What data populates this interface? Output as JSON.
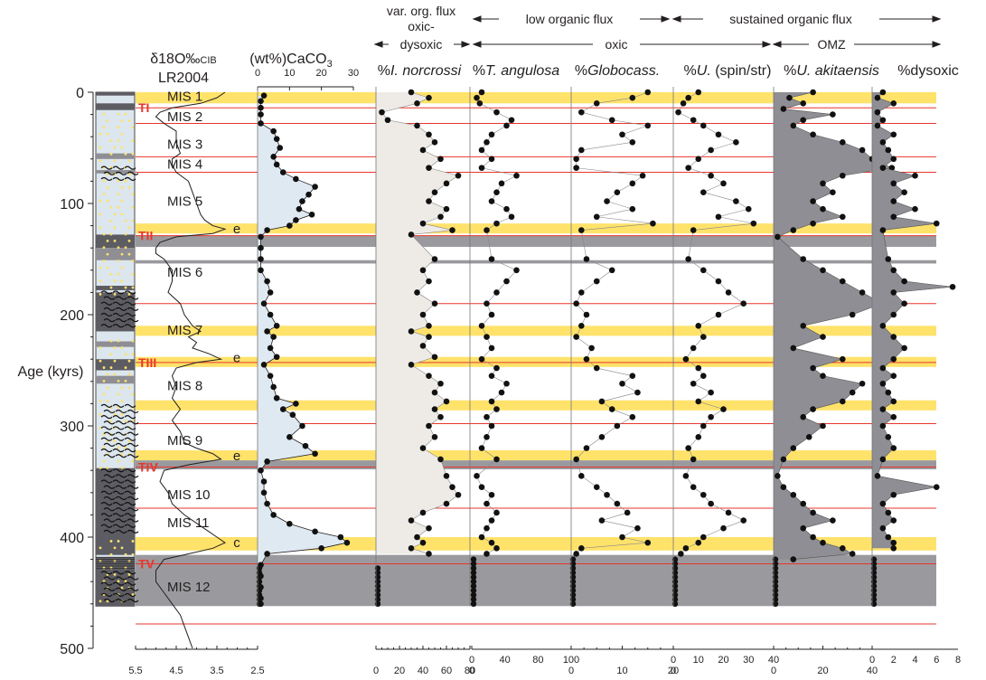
{
  "chart_data": {
    "type": "line",
    "y_axis": {
      "label": "Age (kyrs)",
      "range": [
        0,
        500
      ],
      "ticks": [
        "0",
        "100",
        "200",
        "300",
        "400",
        "500"
      ],
      "inverted": true
    },
    "header": {
      "var_flux": "var. org. flux",
      "oxic_dysoxic_1": "oxic-",
      "oxic_dysoxic_2": "dysoxic",
      "low_flux": "low organic flux",
      "sustained_flux": "sustained organic flux",
      "oxic": "oxic",
      "omz": "OMZ"
    },
    "panel_titles": {
      "d18o_1": "δ18O‰",
      "d18o_sub": "CIB",
      "d18o_2": "LR2004",
      "caco3": "(wt%)CaCO",
      "caco3_sub": "3",
      "inorc_pct": "%",
      "inorc_name": "I. norcrossi",
      "tang_pct": "%",
      "tang_name": "T. angulosa",
      "glob_pct": "%",
      "glob_name": "Globocass.",
      "uspin_pct": "%",
      "uspin_name": "U.",
      "uspin_suffix": " (spin/str)",
      "uakit_pct": "%",
      "uakit_name": "U. akitaensis",
      "dysoxic": "%dysoxic"
    },
    "mis_labels": [
      {
        "text": "MIS 1",
        "y": 3
      },
      {
        "text": "MIS 2",
        "y": 21
      },
      {
        "text": "MIS 3",
        "y": 46
      },
      {
        "text": "MIS 4",
        "y": 64
      },
      {
        "text": "MIS 5",
        "y": 97
      },
      {
        "text": "e",
        "y": 122
      },
      {
        "text": "MIS 6",
        "y": 161
      },
      {
        "text": "MIS 7",
        "y": 213
      },
      {
        "text": "e",
        "y": 238
      },
      {
        "text": "MIS 8",
        "y": 263
      },
      {
        "text": "MIS 9",
        "y": 312
      },
      {
        "text": "e",
        "y": 326
      },
      {
        "text": "MIS 10",
        "y": 361
      },
      {
        "text": "MIS 11",
        "y": 386
      },
      {
        "text": "c",
        "y": 404
      },
      {
        "text": "MIS 12",
        "y": 444
      }
    ],
    "terminations": [
      {
        "label": "TI",
        "y": 14
      },
      {
        "label": "TII",
        "y": 129
      },
      {
        "label": "TIII",
        "y": 243
      },
      {
        "label": "TIV",
        "y": 337
      },
      {
        "label": "TV",
        "y": 424
      }
    ],
    "red_lines": [
      14,
      28,
      58,
      72,
      129,
      190,
      243,
      298,
      337,
      374,
      424,
      478
    ],
    "yellow_bands": [
      [
        0,
        10
      ],
      [
        118,
        127
      ],
      [
        210,
        219
      ],
      [
        238,
        247
      ],
      [
        277,
        286
      ],
      [
        322,
        331
      ],
      [
        400,
        412
      ]
    ],
    "gray_bands": [
      [
        129,
        139
      ],
      [
        151,
        154
      ],
      [
        331,
        339
      ],
      [
        416,
        462
      ]
    ],
    "d18o_axis": {
      "ticks": [
        "5.5",
        "4.5",
        "3.5",
        "2.5"
      ],
      "min": 5.5,
      "max": 2.5
    },
    "caco3_axis": {
      "ticks": [
        "0",
        "10",
        "20",
        "30"
      ],
      "min": 0,
      "max": 30
    },
    "inorc_axis": {
      "ticks": [
        "0",
        "20",
        "40",
        "60",
        "80"
      ],
      "min": 0,
      "max": 80
    },
    "tang_axis": {
      "top_ticks": [
        "0",
        "40",
        "80",
        "100"
      ],
      "bottom_ticks": [
        "0"
      ],
      "min": 0,
      "max": 100
    },
    "glob_axis": {
      "top_ticks": [
        "0",
        "10",
        "20",
        "30",
        "40"
      ],
      "bottom_ticks": [
        "0",
        "10",
        "20"
      ],
      "min": 0,
      "max": 20
    },
    "uspin_axis": {
      "top_ticks": [
        "0",
        "10",
        "20",
        "30",
        "40"
      ],
      "bottom_ticks": [
        "0"
      ],
      "min": 0,
      "max": 40
    },
    "uakit_axis": {
      "top_ticks": [
        "0",
        "2",
        "4",
        "6",
        "8"
      ],
      "bottom_ticks": [
        "0",
        "20",
        "40"
      ],
      "min": 0,
      "max": 50
    },
    "dys_axis": {
      "min": 0,
      "max": 8
    },
    "series": [
      {
        "key": "d18o",
        "age": [
          0,
          5,
          10,
          14,
          18,
          22,
          28,
          35,
          45,
          55,
          60,
          65,
          72,
          80,
          90,
          100,
          110,
          115,
          120,
          123,
          127,
          130,
          135,
          140,
          145,
          150,
          160,
          170,
          180,
          190,
          200,
          210,
          215,
          220,
          225,
          230,
          235,
          240,
          243,
          248,
          255,
          265,
          275,
          285,
          295,
          305,
          315,
          320,
          325,
          330,
          335,
          340,
          350,
          360,
          370,
          380,
          390,
          395,
          400,
          405,
          410,
          415,
          420,
          430,
          440,
          450,
          460,
          470,
          480,
          490,
          500
        ],
        "values": [
          3.3,
          3.5,
          3.9,
          4.6,
          4.9,
          5.0,
          4.8,
          4.5,
          4.5,
          4.4,
          4.6,
          4.6,
          4.5,
          4.2,
          4.1,
          4.0,
          3.9,
          3.8,
          3.6,
          3.3,
          3.6,
          4.5,
          4.9,
          5.0,
          5.0,
          4.8,
          4.6,
          4.6,
          4.7,
          4.4,
          4.3,
          4.1,
          3.9,
          4.2,
          4.0,
          4.1,
          3.7,
          3.4,
          4.0,
          4.5,
          4.6,
          4.5,
          4.6,
          4.4,
          4.6,
          4.4,
          4.3,
          4.0,
          3.6,
          3.4,
          4.2,
          4.8,
          4.9,
          4.7,
          4.6,
          4.3,
          3.9,
          3.7,
          3.5,
          3.3,
          3.6,
          4.2,
          4.8,
          5.0,
          5.0,
          4.8,
          4.6,
          4.4,
          4.3,
          4.2,
          4.1
        ]
      },
      {
        "key": "caco3",
        "age": [
          3,
          8,
          14,
          20,
          28,
          35,
          42,
          50,
          58,
          65,
          72,
          78,
          85,
          92,
          98,
          105,
          110,
          115,
          120,
          124,
          130,
          140,
          150,
          160,
          170,
          180,
          190,
          200,
          210,
          215,
          220,
          230,
          238,
          245,
          255,
          265,
          275,
          280,
          285,
          290,
          300,
          310,
          318,
          325,
          332,
          340,
          350,
          360,
          370,
          380,
          388,
          395,
          400,
          405,
          410,
          415,
          425,
          435,
          445,
          455,
          460
        ],
        "values": [
          2,
          1,
          1,
          1,
          1,
          5,
          6,
          7,
          5,
          6,
          8,
          12,
          18,
          16,
          14,
          13,
          17,
          12,
          10,
          3,
          1,
          1,
          1,
          1,
          3,
          4,
          2,
          4,
          6,
          3,
          5,
          4,
          6,
          2,
          4,
          5,
          6,
          12,
          8,
          11,
          14,
          10,
          15,
          18,
          3,
          1,
          2,
          2,
          3,
          5,
          10,
          18,
          26,
          28,
          20,
          3,
          1,
          1,
          1,
          1,
          1
        ]
      },
      {
        "key": "inorc",
        "age": [
          0,
          5,
          10,
          18,
          25,
          30,
          38,
          45,
          52,
          60,
          68,
          75,
          82,
          90,
          98,
          105,
          112,
          118,
          124,
          128,
          150,
          160,
          170,
          180,
          190,
          200,
          210,
          215,
          220,
          228,
          238,
          245,
          255,
          262,
          270,
          278,
          285,
          292,
          300,
          310,
          320,
          330,
          345,
          355,
          362,
          370,
          378,
          385,
          392,
          400,
          405,
          410,
          415
        ],
        "values": [
          30,
          45,
          35,
          5,
          10,
          35,
          45,
          50,
          40,
          55,
          45,
          70,
          60,
          50,
          45,
          60,
          55,
          40,
          65,
          30,
          50,
          40,
          45,
          35,
          50,
          40,
          45,
          30,
          45,
          40,
          50,
          30,
          45,
          55,
          50,
          60,
          50,
          55,
          45,
          50,
          40,
          55,
          60,
          65,
          70,
          60,
          40,
          30,
          45,
          35,
          40,
          30,
          45
        ]
      },
      {
        "key": "tang",
        "age": [
          0,
          5,
          10,
          18,
          25,
          30,
          38,
          45,
          52,
          60,
          68,
          75,
          82,
          90,
          98,
          105,
          112,
          118,
          124,
          150,
          160,
          170,
          180,
          190,
          200,
          210,
          220,
          230,
          240,
          248,
          255,
          262,
          270,
          278,
          285,
          292,
          300,
          310,
          320,
          330,
          345,
          355,
          362,
          370,
          378,
          385,
          392,
          400,
          405,
          410,
          415
        ],
        "values": [
          10,
          5,
          8,
          25,
          40,
          35,
          20,
          15,
          10,
          20,
          10,
          45,
          30,
          25,
          20,
          35,
          40,
          25,
          15,
          20,
          45,
          35,
          25,
          15,
          20,
          10,
          15,
          20,
          10,
          25,
          20,
          35,
          30,
          20,
          25,
          15,
          20,
          15,
          10,
          25,
          5,
          10,
          20,
          15,
          25,
          20,
          15,
          10,
          20,
          25,
          15
        ]
      },
      {
        "key": "glob",
        "age": [
          0,
          5,
          10,
          18,
          25,
          30,
          38,
          45,
          52,
          60,
          68,
          75,
          82,
          90,
          98,
          105,
          112,
          118,
          124,
          150,
          160,
          170,
          180,
          190,
          200,
          210,
          220,
          230,
          240,
          248,
          255,
          262,
          270,
          278,
          285,
          292,
          300,
          310,
          320,
          330,
          345,
          355,
          362,
          370,
          378,
          385,
          392,
          400,
          405,
          410,
          415
        ],
        "values": [
          15,
          12,
          5,
          2,
          8,
          15,
          10,
          12,
          2,
          1,
          1,
          14,
          12,
          9,
          7,
          12,
          5,
          16,
          2,
          3,
          8,
          5,
          2,
          1,
          3,
          2,
          1,
          4,
          3,
          5,
          12,
          10,
          13,
          6,
          8,
          12,
          9,
          6,
          3,
          1,
          2,
          5,
          7,
          9,
          11,
          6,
          13,
          10,
          15,
          2,
          1
        ]
      },
      {
        "key": "uspin",
        "age": [
          0,
          5,
          10,
          18,
          25,
          30,
          38,
          45,
          52,
          60,
          68,
          75,
          82,
          90,
          98,
          105,
          112,
          118,
          124,
          150,
          160,
          170,
          180,
          190,
          200,
          210,
          220,
          230,
          240,
          248,
          255,
          262,
          270,
          278,
          285,
          292,
          300,
          310,
          320,
          330,
          345,
          355,
          362,
          370,
          378,
          385,
          392,
          400,
          405,
          410,
          415
        ],
        "values": [
          10,
          6,
          4,
          2,
          8,
          12,
          18,
          25,
          15,
          10,
          6,
          15,
          20,
          12,
          25,
          30,
          18,
          32,
          8,
          6,
          12,
          18,
          22,
          28,
          18,
          10,
          12,
          8,
          5,
          10,
          12,
          8,
          15,
          10,
          20,
          15,
          12,
          10,
          6,
          8,
          5,
          8,
          12,
          15,
          22,
          28,
          20,
          12,
          10,
          5,
          3
        ]
      },
      {
        "key": "uakit",
        "age": [
          0,
          5,
          10,
          15,
          20,
          25,
          30,
          38,
          45,
          52,
          60,
          68,
          75,
          82,
          90,
          98,
          105,
          112,
          118,
          124,
          130,
          150,
          160,
          170,
          180,
          190,
          200,
          210,
          220,
          230,
          240,
          248,
          255,
          262,
          270,
          278,
          285,
          292,
          300,
          310,
          320,
          330,
          345,
          355,
          362,
          370,
          378,
          385,
          392,
          400,
          405,
          410,
          415,
          420
        ],
        "values": [
          20,
          8,
          15,
          5,
          30,
          15,
          10,
          20,
          35,
          45,
          50,
          60,
          35,
          25,
          30,
          20,
          25,
          35,
          20,
          10,
          2,
          15,
          25,
          35,
          45,
          55,
          40,
          15,
          25,
          10,
          35,
          20,
          25,
          45,
          40,
          35,
          20,
          15,
          25,
          18,
          10,
          5,
          2,
          5,
          10,
          15,
          20,
          30,
          15,
          20,
          25,
          35,
          40,
          10
        ]
      },
      {
        "key": "dys",
        "age": [
          0,
          5,
          10,
          18,
          25,
          30,
          38,
          45,
          52,
          60,
          68,
          75,
          82,
          90,
          98,
          105,
          112,
          118,
          124,
          150,
          160,
          170,
          175,
          180,
          190,
          200,
          210,
          220,
          230,
          240,
          248,
          255,
          262,
          270,
          278,
          285,
          292,
          300,
          310,
          320,
          330,
          345,
          355,
          362,
          370,
          378,
          385,
          392,
          400,
          405,
          410
        ],
        "values": [
          1,
          0.5,
          2,
          0.5,
          1,
          0.5,
          2,
          1,
          1.5,
          2,
          1,
          4,
          2,
          3,
          2,
          4,
          2,
          6,
          1,
          1.5,
          2,
          3,
          7.5,
          2,
          3,
          2,
          1,
          2,
          3,
          2,
          1,
          2,
          1,
          1.5,
          2,
          1,
          2,
          1,
          1.5,
          2,
          1,
          0.5,
          6,
          2,
          1,
          1.5,
          2,
          1,
          1.5,
          2,
          2
        ]
      }
    ]
  }
}
